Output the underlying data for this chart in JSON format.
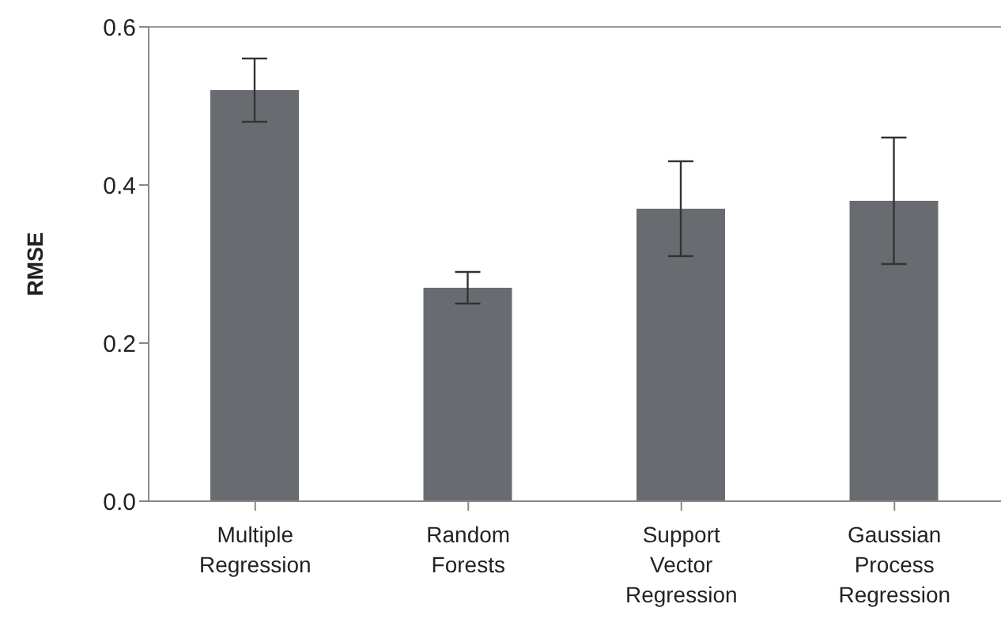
{
  "chart_data": {
    "type": "bar",
    "ylabel": "RMSE",
    "categories": [
      "Multiple Regression",
      "Random Forests",
      "Support Vector Regression",
      "Gaussian Process Regression"
    ],
    "values": [
      0.52,
      0.27,
      0.37,
      0.38
    ],
    "errors": [
      0.04,
      0.02,
      0.06,
      0.08
    ],
    "color": "#686c70",
    "ylim": [
      0,
      0.6
    ],
    "yticks": [
      {
        "value": 0,
        "label": "0.0"
      },
      0.2,
      0.4,
      0.6
    ]
  }
}
